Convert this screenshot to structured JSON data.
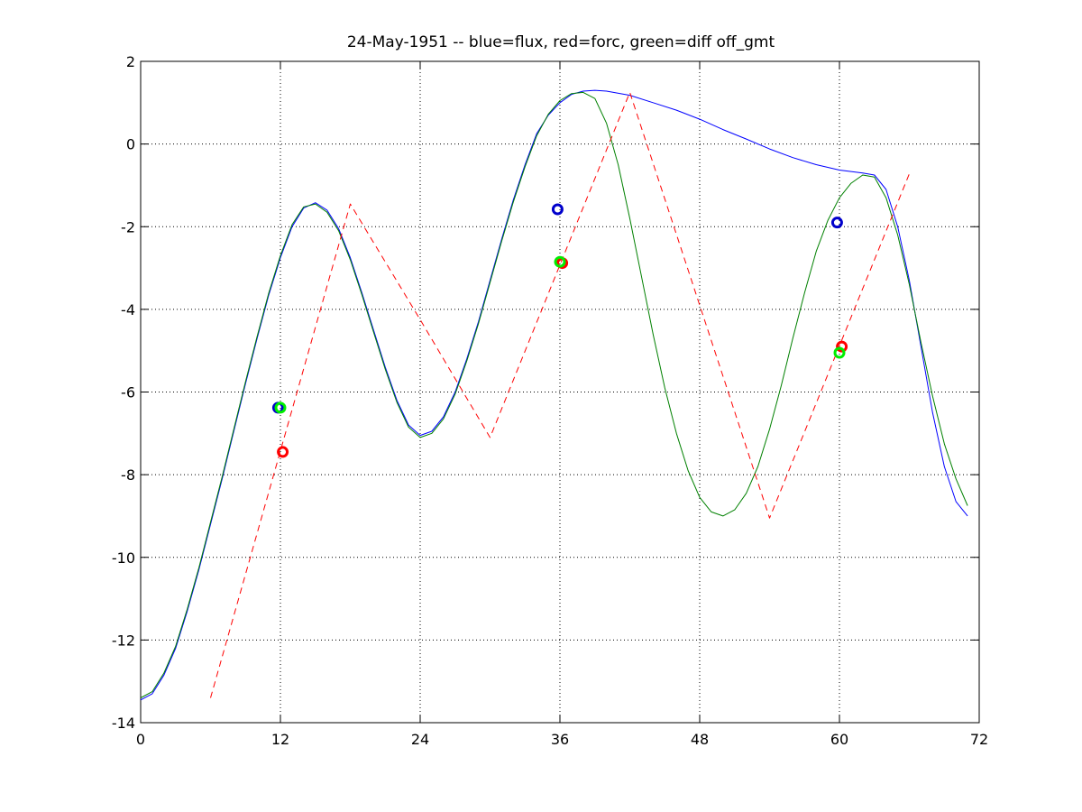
{
  "chart_data": {
    "type": "line",
    "title": "24-May-1951 -- blue=flux, red=forc, green=diff off_gmt",
    "xlabel": "",
    "ylabel": "",
    "xlim": [
      0,
      72
    ],
    "ylim": [
      -14,
      2
    ],
    "xticks": [
      0,
      12,
      24,
      36,
      48,
      60,
      72
    ],
    "yticks": [
      -14,
      -12,
      -10,
      -8,
      -6,
      -4,
      -2,
      0,
      2
    ],
    "xtick_labels": [
      "0",
      "12",
      "24",
      "36",
      "48",
      "60",
      "72"
    ],
    "ytick_labels": [
      "-14",
      "-12",
      "-10",
      "-8",
      "-6",
      "-4",
      "-2",
      "0",
      "2"
    ],
    "grid": true,
    "legend": "none",
    "series": [
      {
        "color": "#0000ff",
        "style": "solid",
        "points": [
          [
            0,
            -13.45
          ],
          [
            1,
            -13.3
          ],
          [
            2,
            -12.85
          ],
          [
            3,
            -12.2
          ],
          [
            4,
            -11.3
          ],
          [
            5,
            -10.3
          ],
          [
            6,
            -9.2
          ],
          [
            7,
            -8.1
          ],
          [
            8,
            -6.95
          ],
          [
            9,
            -5.8
          ],
          [
            10,
            -4.7
          ],
          [
            11,
            -3.65
          ],
          [
            12,
            -2.75
          ],
          [
            13,
            -2.0
          ],
          [
            14,
            -1.55
          ],
          [
            15,
            -1.42
          ],
          [
            16,
            -1.6
          ],
          [
            17,
            -2.05
          ],
          [
            18,
            -2.75
          ],
          [
            19,
            -3.6
          ],
          [
            20,
            -4.5
          ],
          [
            21,
            -5.4
          ],
          [
            22,
            -6.2
          ],
          [
            23,
            -6.8
          ],
          [
            24,
            -7.05
          ],
          [
            25,
            -6.95
          ],
          [
            26,
            -6.6
          ],
          [
            27,
            -6.0
          ],
          [
            28,
            -5.2
          ],
          [
            29,
            -4.3
          ],
          [
            30,
            -3.3
          ],
          [
            31,
            -2.3
          ],
          [
            32,
            -1.35
          ],
          [
            33,
            -0.5
          ],
          [
            34,
            0.25
          ],
          [
            35,
            0.7
          ],
          [
            36,
            1.0
          ],
          [
            37,
            1.2
          ],
          [
            38,
            1.28
          ],
          [
            39,
            1.3
          ],
          [
            40,
            1.28
          ],
          [
            42,
            1.18
          ],
          [
            44,
            1.0
          ],
          [
            46,
            0.82
          ],
          [
            48,
            0.6
          ],
          [
            50,
            0.35
          ],
          [
            52,
            0.12
          ],
          [
            54,
            -0.12
          ],
          [
            56,
            -0.33
          ],
          [
            58,
            -0.5
          ],
          [
            60,
            -0.63
          ],
          [
            62,
            -0.7
          ],
          [
            63,
            -0.75
          ],
          [
            64,
            -1.1
          ],
          [
            65,
            -2.0
          ],
          [
            66,
            -3.3
          ],
          [
            67,
            -4.9
          ],
          [
            68,
            -6.5
          ],
          [
            69,
            -7.8
          ],
          [
            70,
            -8.65
          ],
          [
            71,
            -9.0
          ]
        ]
      },
      {
        "color": "#008000",
        "style": "solid",
        "points": [
          [
            0,
            -13.4
          ],
          [
            1,
            -13.25
          ],
          [
            2,
            -12.8
          ],
          [
            3,
            -12.15
          ],
          [
            4,
            -11.25
          ],
          [
            5,
            -10.25
          ],
          [
            6,
            -9.15
          ],
          [
            7,
            -8.05
          ],
          [
            8,
            -6.9
          ],
          [
            9,
            -5.75
          ],
          [
            10,
            -4.65
          ],
          [
            11,
            -3.6
          ],
          [
            12,
            -2.7
          ],
          [
            13,
            -1.95
          ],
          [
            14,
            -1.52
          ],
          [
            15,
            -1.45
          ],
          [
            16,
            -1.65
          ],
          [
            17,
            -2.1
          ],
          [
            18,
            -2.8
          ],
          [
            19,
            -3.65
          ],
          [
            20,
            -4.55
          ],
          [
            21,
            -5.45
          ],
          [
            22,
            -6.25
          ],
          [
            23,
            -6.85
          ],
          [
            24,
            -7.1
          ],
          [
            25,
            -7.0
          ],
          [
            26,
            -6.65
          ],
          [
            27,
            -6.05
          ],
          [
            28,
            -5.25
          ],
          [
            29,
            -4.35
          ],
          [
            30,
            -3.35
          ],
          [
            31,
            -2.35
          ],
          [
            32,
            -1.4
          ],
          [
            33,
            -0.55
          ],
          [
            34,
            0.2
          ],
          [
            35,
            0.72
          ],
          [
            36,
            1.05
          ],
          [
            37,
            1.22
          ],
          [
            38,
            1.25
          ],
          [
            39,
            1.1
          ],
          [
            40,
            0.5
          ],
          [
            41,
            -0.5
          ],
          [
            42,
            -1.8
          ],
          [
            43,
            -3.2
          ],
          [
            44,
            -4.6
          ],
          [
            45,
            -5.9
          ],
          [
            46,
            -7.0
          ],
          [
            47,
            -7.9
          ],
          [
            48,
            -8.55
          ],
          [
            49,
            -8.9
          ],
          [
            50,
            -9.0
          ],
          [
            51,
            -8.85
          ],
          [
            52,
            -8.45
          ],
          [
            53,
            -7.8
          ],
          [
            54,
            -6.9
          ],
          [
            55,
            -5.85
          ],
          [
            56,
            -4.7
          ],
          [
            57,
            -3.6
          ],
          [
            58,
            -2.6
          ],
          [
            59,
            -1.85
          ],
          [
            60,
            -1.3
          ],
          [
            61,
            -0.95
          ],
          [
            62,
            -0.75
          ],
          [
            63,
            -0.8
          ],
          [
            64,
            -1.3
          ],
          [
            65,
            -2.2
          ],
          [
            66,
            -3.4
          ],
          [
            67,
            -4.8
          ],
          [
            68,
            -6.1
          ],
          [
            69,
            -7.25
          ],
          [
            70,
            -8.1
          ],
          [
            71,
            -8.75
          ]
        ]
      },
      {
        "color": "#ff0000",
        "style": "dashed",
        "points": [
          [
            6,
            -13.4
          ],
          [
            18,
            -1.45
          ],
          [
            24,
            -4.25
          ],
          [
            30,
            -7.1
          ],
          [
            42,
            1.25
          ],
          [
            54,
            -9.05
          ],
          [
            66,
            -0.72
          ]
        ]
      }
    ],
    "markers": [
      {
        "x": 11.8,
        "y": -6.38,
        "color": "#0000cc"
      },
      {
        "x": 12.0,
        "y": -6.38,
        "color": "#00ee00"
      },
      {
        "x": 12.2,
        "y": -7.45,
        "color": "#ff0000"
      },
      {
        "x": 35.8,
        "y": -1.58,
        "color": "#0000cc"
      },
      {
        "x": 36.2,
        "y": -2.88,
        "color": "#ff0000"
      },
      {
        "x": 36.0,
        "y": -2.85,
        "color": "#00ee00"
      },
      {
        "x": 59.8,
        "y": -1.9,
        "color": "#0000cc"
      },
      {
        "x": 60.2,
        "y": -4.9,
        "color": "#ff0000"
      },
      {
        "x": 60.0,
        "y": -5.05,
        "color": "#00ee00"
      }
    ]
  }
}
